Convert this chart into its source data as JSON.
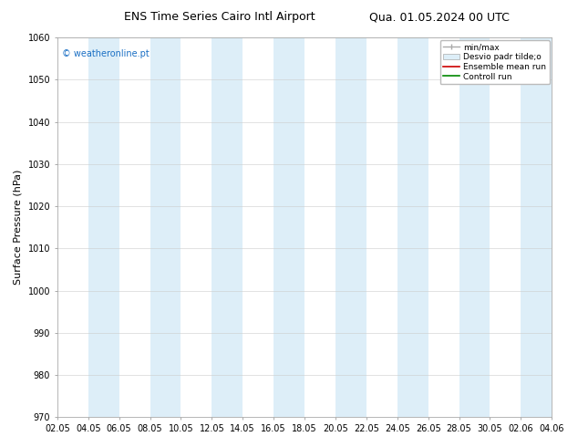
{
  "title_left": "ENS Time Series Cairo Intl Airport",
  "title_right": "Qua. 01.05.2024 00 UTC",
  "ylabel": "Surface Pressure (hPa)",
  "ylim": [
    970,
    1060
  ],
  "yticks": [
    970,
    980,
    990,
    1000,
    1010,
    1020,
    1030,
    1040,
    1050,
    1060
  ],
  "x_tick_labels": [
    "02.05",
    "04.05",
    "06.05",
    "08.05",
    "10.05",
    "12.05",
    "14.05",
    "16.05",
    "18.05",
    "20.05",
    "22.05",
    "24.05",
    "26.05",
    "28.05",
    "30.05",
    "02.06",
    "04.06"
  ],
  "n_ticks": 17,
  "band_color": "#ddeef8",
  "band_alpha": 1.0,
  "background_color": "#ffffff",
  "watermark": "© weatheronline.pt",
  "watermark_color": "#1a6fc4",
  "legend_labels": [
    "min/max",
    "Desvio padr tilde;o",
    "Ensemble mean run",
    "Controll run"
  ],
  "legend_line_color": "#aaaaaa",
  "legend_patch_color": "#ddeef8",
  "legend_red": "#cc0000",
  "legend_green": "#008800",
  "title_fontsize": 9,
  "axis_label_fontsize": 8,
  "tick_fontsize": 7,
  "legend_fontsize": 6.5,
  "watermark_fontsize": 7
}
